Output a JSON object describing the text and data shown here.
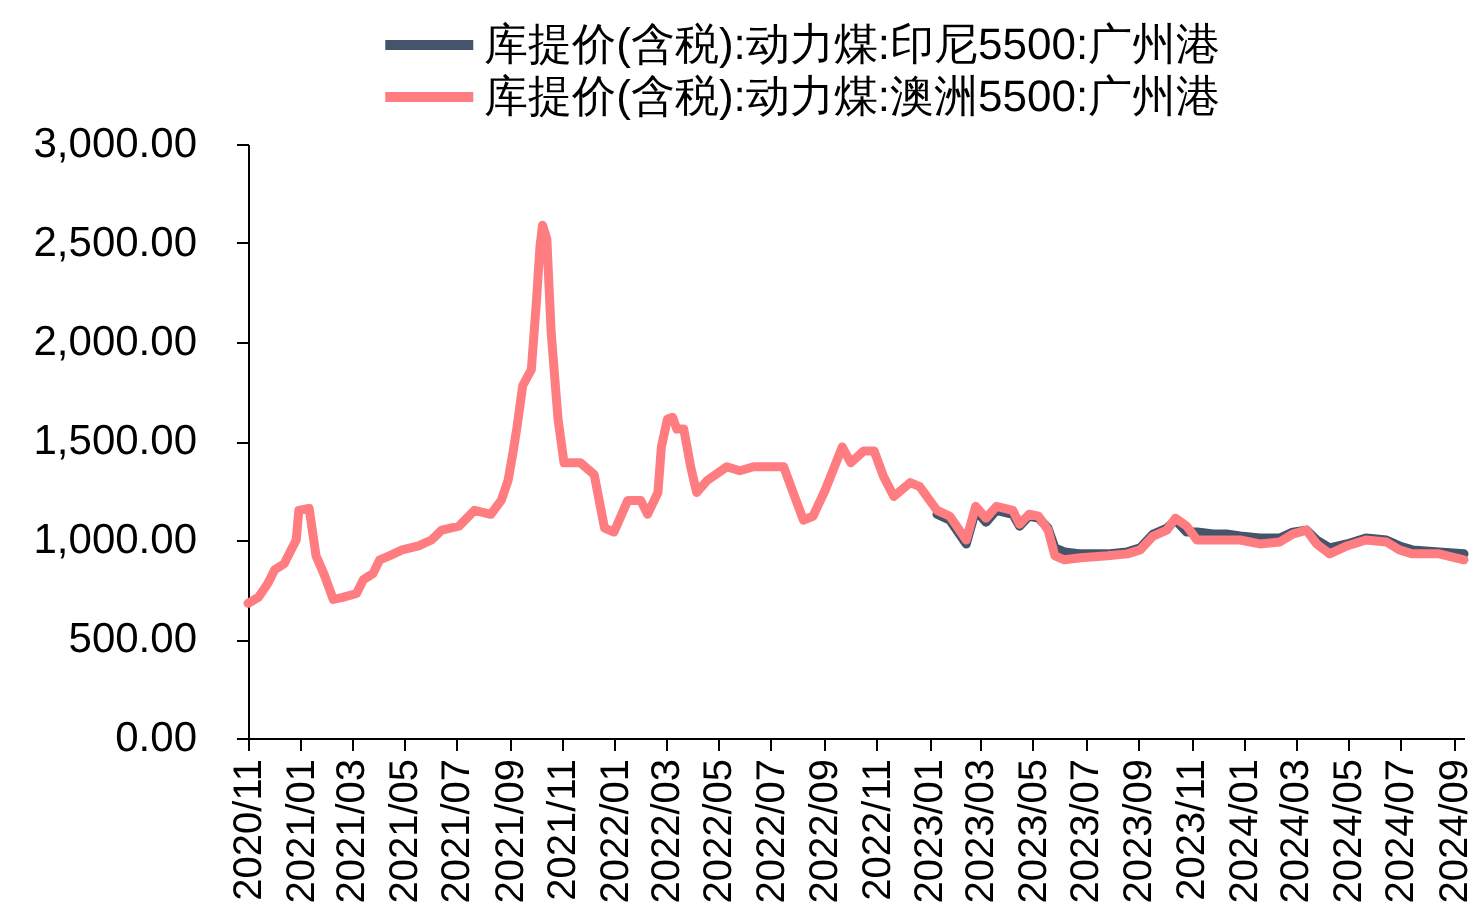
{
  "chart_data": {
    "type": "line",
    "legend": "top",
    "xlim": [
      "2020-11-01",
      "2024-09-13"
    ],
    "xticks": [
      {
        "value": "2020-11",
        "label": "2020/11"
      },
      {
        "value": "2021-01",
        "label": "2021/01"
      },
      {
        "value": "2021-03",
        "label": "2021/03"
      },
      {
        "value": "2021-05",
        "label": "2021/05"
      },
      {
        "value": "2021-07",
        "label": "2021/07"
      },
      {
        "value": "2021-09",
        "label": "2021/09"
      },
      {
        "value": "2021-11",
        "label": "2021/11"
      },
      {
        "value": "2022-01",
        "label": "2022/01"
      },
      {
        "value": "2022-03",
        "label": "2022/03"
      },
      {
        "value": "2022-05",
        "label": "2022/05"
      },
      {
        "value": "2022-07",
        "label": "2022/07"
      },
      {
        "value": "2022-09",
        "label": "2022/09"
      },
      {
        "value": "2022-11",
        "label": "2022/11"
      },
      {
        "value": "2023-01",
        "label": "2023/01"
      },
      {
        "value": "2023-03",
        "label": "2023/03"
      },
      {
        "value": "2023-05",
        "label": "2023/05"
      },
      {
        "value": "2023-07",
        "label": "2023/07"
      },
      {
        "value": "2023-09",
        "label": "2023/09"
      },
      {
        "value": "2023-11",
        "label": "2023/11"
      },
      {
        "value": "2024-01",
        "label": "2024/01"
      },
      {
        "value": "2024-03",
        "label": "2024/03"
      },
      {
        "value": "2024-05",
        "label": "2024/05"
      },
      {
        "value": "2024-07",
        "label": "2024/07"
      },
      {
        "value": "2024-09",
        "label": "2024/09"
      }
    ],
    "ylim": [
      0,
      3000
    ],
    "yticks": [
      {
        "value": 0,
        "label": "0.00"
      },
      {
        "value": 500,
        "label": "500.00"
      },
      {
        "value": 1000,
        "label": "1,000.00"
      },
      {
        "value": 1500,
        "label": "1,500.00"
      },
      {
        "value": 2000,
        "label": "2,000.00"
      },
      {
        "value": 2500,
        "label": "2,500.00"
      },
      {
        "value": 3000,
        "label": "3,000.00"
      }
    ],
    "x": [
      "2020-11-01",
      "2020-11-13",
      "2020-11-24",
      "2020-12-02",
      "2020-12-13",
      "2020-12-21",
      "2020-12-27",
      "2020-12-30",
      "2021-01-11",
      "2021-01-19",
      "2021-01-28",
      "2021-02-08",
      "2021-02-19",
      "2021-03-07",
      "2021-03-15",
      "2021-03-26",
      "2021-04-03",
      "2021-04-14",
      "2021-04-29",
      "2021-05-18",
      "2021-06-02",
      "2021-06-14",
      "2021-07-04",
      "2021-07-22",
      "2021-08-10",
      "2021-08-22",
      "2021-08-30",
      "2021-09-05",
      "2021-09-09",
      "2021-09-16",
      "2021-09-26",
      "2021-10-02",
      "2021-10-06",
      "2021-10-09",
      "2021-10-14",
      "2021-10-19",
      "2021-10-27",
      "2021-11-03",
      "2021-11-22",
      "2021-12-08",
      "2021-12-20",
      "2021-12-31",
      "2022-01-16",
      "2022-01-31",
      "2022-02-08",
      "2022-02-20",
      "2022-02-24",
      "2022-03-03",
      "2022-03-09",
      "2022-03-14",
      "2022-03-22",
      "2022-03-30",
      "2022-04-06",
      "2022-04-18",
      "2022-05-11",
      "2022-05-26",
      "2022-06-11",
      "2022-07-16",
      "2022-07-27",
      "2022-08-08",
      "2022-08-19",
      "2022-09-02",
      "2022-09-13",
      "2022-09-22",
      "2022-10-02",
      "2022-10-17",
      "2022-10-29",
      "2022-11-09",
      "2022-11-21",
      "2022-12-10",
      "2022-12-21",
      "2023-01-10",
      "2023-01-25",
      "2023-02-13",
      "2023-02-24",
      "2023-03-08",
      "2023-03-20",
      "2023-04-08",
      "2023-04-16",
      "2023-04-27",
      "2023-05-08",
      "2023-05-19",
      "2023-05-27",
      "2023-06-07",
      "2023-06-26",
      "2023-07-27",
      "2023-08-19",
      "2023-09-03",
      "2023-09-18",
      "2023-10-04",
      "2023-10-14",
      "2023-10-27",
      "2023-11-08",
      "2023-11-27",
      "2023-12-12",
      "2023-12-28",
      "2024-01-20",
      "2024-02-12",
      "2024-02-27",
      "2024-03-14",
      "2024-03-26",
      "2024-04-10",
      "2024-04-30",
      "2024-05-22",
      "2024-06-15",
      "2024-06-30",
      "2024-07-15",
      "2024-08-15",
      "2024-09-13"
    ],
    "series": [
      {
        "name": "库提价(含税):动力煤:印尼5500:广州港",
        "color": "#44546a",
        "x": [
          "2023-01-10",
          "2023-01-25",
          "2023-02-13",
          "2023-02-24",
          "2023-03-08",
          "2023-03-20",
          "2023-04-08",
          "2023-04-16",
          "2023-04-27",
          "2023-05-08",
          "2023-05-19",
          "2023-05-27",
          "2023-06-07",
          "2023-06-26",
          "2023-07-27",
          "2023-08-19",
          "2023-09-03",
          "2023-09-18",
          "2023-10-04",
          "2023-10-14",
          "2023-10-27",
          "2023-11-08",
          "2023-11-27",
          "2023-12-12",
          "2023-12-28",
          "2024-01-20",
          "2024-02-12",
          "2024-02-27",
          "2024-03-14",
          "2024-03-26",
          "2024-04-10",
          "2024-04-30",
          "2024-05-22",
          "2024-06-15",
          "2024-06-30",
          "2024-07-15",
          "2024-08-15",
          "2024-09-13"
        ],
        "values": [
          1130,
          1100,
          980,
          1150,
          1090,
          1150,
          1130,
          1070,
          1120,
          1110,
          1060,
          960,
          940,
          930,
          930,
          940,
          960,
          1030,
          1060,
          1100,
          1040,
          1040,
          1030,
          1030,
          1020,
          1010,
          1010,
          1040,
          1050,
          1000,
          960,
          980,
          1010,
          1000,
          970,
          950,
          940,
          930
        ]
      },
      {
        "name": "库提价(含税):动力煤:澳洲5500:广州港",
        "color": "#ff7c80",
        "values": [
          680,
          710,
          780,
          850,
          880,
          950,
          1000,
          1150,
          1160,
          920,
          830,
          700,
          710,
          730,
          800,
          830,
          900,
          920,
          950,
          970,
          1000,
          1050,
          1070,
          1150,
          1130,
          1200,
          1300,
          1450,
          1560,
          1780,
          1860,
          2210,
          2480,
          2590,
          2520,
          2050,
          1610,
          1390,
          1390,
          1330,
          1060,
          1040,
          1200,
          1200,
          1130,
          1240,
          1470,
          1610,
          1620,
          1560,
          1560,
          1370,
          1240,
          1300,
          1370,
          1350,
          1370,
          1370,
          1240,
          1100,
          1120,
          1250,
          1370,
          1470,
          1390,
          1450,
          1450,
          1320,
          1220,
          1290,
          1270,
          1150,
          1120,
          1000,
          1170,
          1110,
          1170,
          1150,
          1080,
          1130,
          1120,
          1050,
          920,
          900,
          910,
          920,
          930,
          950,
          1020,
          1050,
          1110,
          1070,
          1000,
          1000,
          1000,
          1000,
          980,
          990,
          1030,
          1050,
          980,
          930,
          970,
          1000,
          990,
          950,
          930,
          930,
          900
        ]
      }
    ]
  }
}
